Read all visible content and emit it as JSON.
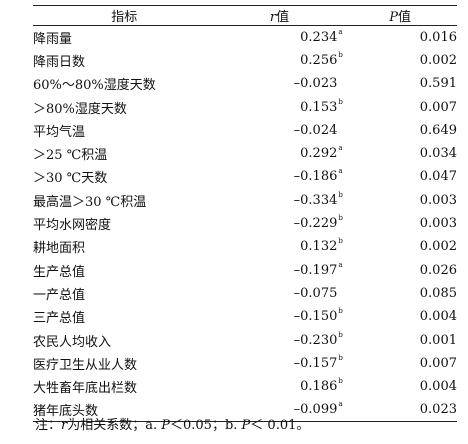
{
  "table": {
    "headers": {
      "indicator": "指标",
      "r_italic": "r",
      "r_suffix": "值",
      "p_italic": "P",
      "p_suffix": "值"
    },
    "rows": [
      {
        "indicator": "降雨量",
        "r": "0.234",
        "mark": "a",
        "p": "0.016"
      },
      {
        "indicator": "降雨日数",
        "r": "0.256",
        "mark": "b",
        "p": "0.002"
      },
      {
        "indicator": "60%～80%湿度天数",
        "r": "–0.023",
        "mark": "",
        "p": "0.591"
      },
      {
        "indicator": "＞80%湿度天数",
        "r": "0.153",
        "mark": "b",
        "p": "0.007"
      },
      {
        "indicator": "平均气温",
        "r": "–0.024",
        "mark": "",
        "p": "0.649"
      },
      {
        "indicator": "＞25 ℃积温",
        "r": "0.292",
        "mark": "a",
        "p": "0.034"
      },
      {
        "indicator": "＞30 ℃天数",
        "r": "–0.186",
        "mark": "a",
        "p": "0.047"
      },
      {
        "indicator": "最高温＞30 ℃积温",
        "r": "–0.334",
        "mark": "b",
        "p": "0.003"
      },
      {
        "indicator": "平均水网密度",
        "r": "–0.229",
        "mark": "b",
        "p": "0.003"
      },
      {
        "indicator": "耕地面积",
        "r": "0.132",
        "mark": "b",
        "p": "0.002"
      },
      {
        "indicator": "生产总值",
        "r": "–0.197",
        "mark": "a",
        "p": "0.026"
      },
      {
        "indicator": "一产总值",
        "r": "–0.075",
        "mark": "",
        "p": "0.085"
      },
      {
        "indicator": "三产总值",
        "r": "–0.150",
        "mark": "b",
        "p": "0.004"
      },
      {
        "indicator": "农民人均收入",
        "r": "–0.230",
        "mark": "b",
        "p": "0.001"
      },
      {
        "indicator": "医疗卫生从业人数",
        "r": "–0.157",
        "mark": "b",
        "p": "0.007"
      },
      {
        "indicator": "大牲畜年底出栏数",
        "r": "0.186",
        "mark": "b",
        "p": "0.004"
      },
      {
        "indicator": "猪年底头数",
        "r": "–0.099",
        "mark": "a",
        "p": "0.023"
      }
    ]
  },
  "note": {
    "prefix": "注：",
    "r_italic": "r",
    "part1": "为相关系数；a. ",
    "p1_italic": "P",
    "part2": "＜0.05；b. ",
    "p2_italic": "P",
    "part3": "＜ 0.01。"
  }
}
